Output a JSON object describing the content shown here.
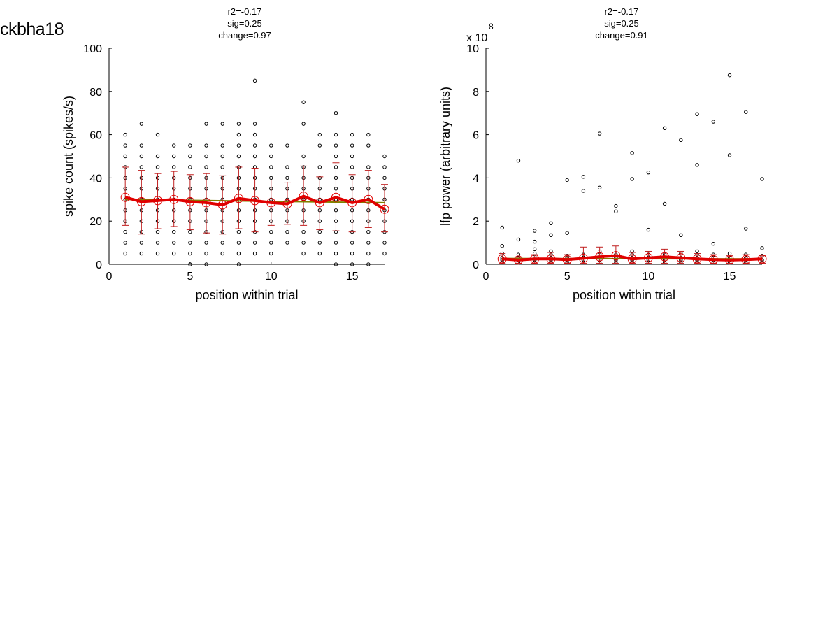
{
  "figure_title": "ckbha18",
  "colors": {
    "mean_line": "#e00000",
    "fit_line": "#808000",
    "errorbar": "#c02020",
    "points": "#000000",
    "axis": "#000000"
  },
  "chart_data": [
    {
      "type": "scatter",
      "stats": [
        "r2=-0.17",
        "sig=0.25",
        "change=0.97"
      ],
      "xlabel": "position within trial",
      "ylabel": "spike count (spikes/s)",
      "exponent_label": "",
      "xlim": [
        0,
        17
      ],
      "ylim": [
        0,
        100
      ],
      "xticks": [
        0,
        5,
        10,
        15
      ],
      "yticks": [
        0,
        20,
        40,
        60,
        80,
        100
      ],
      "grid": false,
      "points": [
        [
          1,
          5
        ],
        [
          1,
          10
        ],
        [
          1,
          15
        ],
        [
          1,
          20
        ],
        [
          1,
          25
        ],
        [
          1,
          30
        ],
        [
          1,
          35
        ],
        [
          1,
          40
        ],
        [
          1,
          45
        ],
        [
          1,
          50
        ],
        [
          1,
          55
        ],
        [
          1,
          60
        ],
        [
          2,
          5
        ],
        [
          2,
          10
        ],
        [
          2,
          15
        ],
        [
          2,
          20
        ],
        [
          2,
          25
        ],
        [
          2,
          30
        ],
        [
          2,
          35
        ],
        [
          2,
          40
        ],
        [
          2,
          45
        ],
        [
          2,
          50
        ],
        [
          2,
          55
        ],
        [
          2,
          65
        ],
        [
          3,
          5
        ],
        [
          3,
          10
        ],
        [
          3,
          15
        ],
        [
          3,
          20
        ],
        [
          3,
          25
        ],
        [
          3,
          30
        ],
        [
          3,
          35
        ],
        [
          3,
          40
        ],
        [
          3,
          45
        ],
        [
          3,
          50
        ],
        [
          3,
          60
        ],
        [
          4,
          5
        ],
        [
          4,
          10
        ],
        [
          4,
          15
        ],
        [
          4,
          20
        ],
        [
          4,
          25
        ],
        [
          4,
          30
        ],
        [
          4,
          35
        ],
        [
          4,
          40
        ],
        [
          4,
          45
        ],
        [
          4,
          50
        ],
        [
          4,
          55
        ],
        [
          5,
          0
        ],
        [
          5,
          5
        ],
        [
          5,
          10
        ],
        [
          5,
          15
        ],
        [
          5,
          20
        ],
        [
          5,
          25
        ],
        [
          5,
          30
        ],
        [
          5,
          35
        ],
        [
          5,
          40
        ],
        [
          5,
          45
        ],
        [
          5,
          50
        ],
        [
          5,
          55
        ],
        [
          6,
          0
        ],
        [
          6,
          5
        ],
        [
          6,
          10
        ],
        [
          6,
          15
        ],
        [
          6,
          20
        ],
        [
          6,
          25
        ],
        [
          6,
          30
        ],
        [
          6,
          35
        ],
        [
          6,
          40
        ],
        [
          6,
          45
        ],
        [
          6,
          50
        ],
        [
          6,
          55
        ],
        [
          6,
          65
        ],
        [
          7,
          5
        ],
        [
          7,
          10
        ],
        [
          7,
          15
        ],
        [
          7,
          20
        ],
        [
          7,
          25
        ],
        [
          7,
          30
        ],
        [
          7,
          35
        ],
        [
          7,
          40
        ],
        [
          7,
          45
        ],
        [
          7,
          50
        ],
        [
          7,
          55
        ],
        [
          7,
          65
        ],
        [
          8,
          0
        ],
        [
          8,
          5
        ],
        [
          8,
          10
        ],
        [
          8,
          15
        ],
        [
          8,
          20
        ],
        [
          8,
          25
        ],
        [
          8,
          30
        ],
        [
          8,
          35
        ],
        [
          8,
          40
        ],
        [
          8,
          45
        ],
        [
          8,
          50
        ],
        [
          8,
          55
        ],
        [
          8,
          60
        ],
        [
          8,
          65
        ],
        [
          9,
          5
        ],
        [
          9,
          10
        ],
        [
          9,
          15
        ],
        [
          9,
          20
        ],
        [
          9,
          25
        ],
        [
          9,
          30
        ],
        [
          9,
          35
        ],
        [
          9,
          40
        ],
        [
          9,
          45
        ],
        [
          9,
          50
        ],
        [
          9,
          55
        ],
        [
          9,
          60
        ],
        [
          9,
          65
        ],
        [
          9,
          85
        ],
        [
          10,
          5
        ],
        [
          10,
          10
        ],
        [
          10,
          15
        ],
        [
          10,
          20
        ],
        [
          10,
          25
        ],
        [
          10,
          30
        ],
        [
          10,
          35
        ],
        [
          10,
          40
        ],
        [
          10,
          45
        ],
        [
          10,
          50
        ],
        [
          10,
          55
        ],
        [
          11,
          10
        ],
        [
          11,
          15
        ],
        [
          11,
          20
        ],
        [
          11,
          25
        ],
        [
          11,
          30
        ],
        [
          11,
          35
        ],
        [
          11,
          40
        ],
        [
          11,
          45
        ],
        [
          11,
          55
        ],
        [
          12,
          5
        ],
        [
          12,
          10
        ],
        [
          12,
          15
        ],
        [
          12,
          20
        ],
        [
          12,
          25
        ],
        [
          12,
          30
        ],
        [
          12,
          35
        ],
        [
          12,
          40
        ],
        [
          12,
          45
        ],
        [
          12,
          50
        ],
        [
          12,
          65
        ],
        [
          12,
          75
        ],
        [
          13,
          5
        ],
        [
          13,
          10
        ],
        [
          13,
          15
        ],
        [
          13,
          20
        ],
        [
          13,
          25
        ],
        [
          13,
          30
        ],
        [
          13,
          35
        ],
        [
          13,
          40
        ],
        [
          13,
          45
        ],
        [
          13,
          55
        ],
        [
          13,
          60
        ],
        [
          14,
          0
        ],
        [
          14,
          5
        ],
        [
          14,
          10
        ],
        [
          14,
          15
        ],
        [
          14,
          20
        ],
        [
          14,
          25
        ],
        [
          14,
          30
        ],
        [
          14,
          35
        ],
        [
          14,
          40
        ],
        [
          14,
          45
        ],
        [
          14,
          50
        ],
        [
          14,
          55
        ],
        [
          14,
          60
        ],
        [
          14,
          70
        ],
        [
          15,
          0
        ],
        [
          15,
          5
        ],
        [
          15,
          10
        ],
        [
          15,
          15
        ],
        [
          15,
          20
        ],
        [
          15,
          25
        ],
        [
          15,
          30
        ],
        [
          15,
          35
        ],
        [
          15,
          40
        ],
        [
          15,
          45
        ],
        [
          15,
          50
        ],
        [
          15,
          55
        ],
        [
          15,
          60
        ],
        [
          16,
          0
        ],
        [
          16,
          5
        ],
        [
          16,
          10
        ],
        [
          16,
          15
        ],
        [
          16,
          20
        ],
        [
          16,
          25
        ],
        [
          16,
          30
        ],
        [
          16,
          35
        ],
        [
          16,
          40
        ],
        [
          16,
          45
        ],
        [
          16,
          55
        ],
        [
          16,
          60
        ],
        [
          17,
          5
        ],
        [
          17,
          10
        ],
        [
          17,
          15
        ],
        [
          17,
          20
        ],
        [
          17,
          25
        ],
        [
          17,
          30
        ],
        [
          17,
          35
        ],
        [
          17,
          40
        ],
        [
          17,
          45
        ],
        [
          17,
          50
        ]
      ],
      "mean": [
        31,
        29,
        29.5,
        30,
        29,
        28.5,
        27.5,
        30.5,
        29.5,
        28.5,
        28,
        31.5,
        28.5,
        31,
        28.5,
        30,
        25.5
      ],
      "err_low": [
        18,
        14,
        16.5,
        17.5,
        16,
        14.5,
        14,
        16.5,
        15,
        18,
        18.5,
        18,
        16,
        15.5,
        15,
        17,
        15
      ],
      "err_high": [
        45,
        43.5,
        42,
        43,
        41.5,
        42,
        41,
        45,
        44.5,
        39,
        38,
        45.5,
        40.5,
        47,
        41.5,
        43.5,
        37
      ],
      "fit": [
        30,
        28.5
      ]
    },
    {
      "type": "scatter",
      "stats": [
        "r2=-0.17",
        "sig=0.25",
        "change=0.91"
      ],
      "xlabel": "position within trial",
      "ylabel": "lfp power (arbitrary units)",
      "exponent_label": "x 10",
      "exponent_power": "8",
      "xlim": [
        0,
        17
      ],
      "ylim": [
        0,
        10
      ],
      "xticks": [
        0,
        5,
        10,
        15
      ],
      "yticks": [
        0,
        2,
        4,
        6,
        8,
        10
      ],
      "grid": false,
      "points": [
        [
          1,
          0.1
        ],
        [
          1,
          0.2
        ],
        [
          1,
          0.3
        ],
        [
          1,
          0.5
        ],
        [
          1,
          0.85
        ],
        [
          1,
          1.7
        ],
        [
          2,
          0.1
        ],
        [
          2,
          0.2
        ],
        [
          2,
          0.3
        ],
        [
          2,
          0.45
        ],
        [
          2,
          1.15
        ],
        [
          2,
          4.8
        ],
        [
          3,
          0.1
        ],
        [
          3,
          0.2
        ],
        [
          3,
          0.35
        ],
        [
          3,
          0.5
        ],
        [
          3,
          0.7
        ],
        [
          3,
          1.05
        ],
        [
          3,
          1.55
        ],
        [
          4,
          0.1
        ],
        [
          4,
          0.2
        ],
        [
          4,
          0.3
        ],
        [
          4,
          0.45
        ],
        [
          4,
          0.6
        ],
        [
          4,
          1.35
        ],
        [
          4,
          1.9
        ],
        [
          5,
          0.1
        ],
        [
          5,
          0.2
        ],
        [
          5,
          0.3
        ],
        [
          5,
          0.4
        ],
        [
          5,
          1.45
        ],
        [
          5,
          3.9
        ],
        [
          6,
          0.1
        ],
        [
          6,
          0.2
        ],
        [
          6,
          0.3
        ],
        [
          6,
          0.45
        ],
        [
          6,
          3.4
        ],
        [
          6,
          4.05
        ],
        [
          7,
          0.1
        ],
        [
          7,
          0.2
        ],
        [
          7,
          0.3
        ],
        [
          7,
          0.45
        ],
        [
          7,
          0.6
        ],
        [
          7,
          3.55
        ],
        [
          7,
          6.05
        ],
        [
          8,
          0.1
        ],
        [
          8,
          0.2
        ],
        [
          8,
          0.3
        ],
        [
          8,
          0.45
        ],
        [
          8,
          2.45
        ],
        [
          8,
          2.7
        ],
        [
          9,
          0.1
        ],
        [
          9,
          0.2
        ],
        [
          9,
          0.3
        ],
        [
          9,
          0.45
        ],
        [
          9,
          0.6
        ],
        [
          9,
          3.95
        ],
        [
          9,
          5.15
        ],
        [
          10,
          0.1
        ],
        [
          10,
          0.2
        ],
        [
          10,
          0.3
        ],
        [
          10,
          0.45
        ],
        [
          10,
          1.6
        ],
        [
          10,
          4.25
        ],
        [
          11,
          0.1
        ],
        [
          11,
          0.2
        ],
        [
          11,
          0.3
        ],
        [
          11,
          0.45
        ],
        [
          11,
          2.8
        ],
        [
          11,
          6.3
        ],
        [
          12,
          0.1
        ],
        [
          12,
          0.2
        ],
        [
          12,
          0.3
        ],
        [
          12,
          0.5
        ],
        [
          12,
          1.35
        ],
        [
          12,
          5.75
        ],
        [
          13,
          0.1
        ],
        [
          13,
          0.2
        ],
        [
          13,
          0.3
        ],
        [
          13,
          0.45
        ],
        [
          13,
          0.6
        ],
        [
          13,
          4.6
        ],
        [
          13,
          6.95
        ],
        [
          14,
          0.1
        ],
        [
          14,
          0.2
        ],
        [
          14,
          0.3
        ],
        [
          14,
          0.45
        ],
        [
          14,
          0.95
        ],
        [
          14,
          6.6
        ],
        [
          15,
          0.1
        ],
        [
          15,
          0.2
        ],
        [
          15,
          0.3
        ],
        [
          15,
          0.5
        ],
        [
          15,
          5.05
        ],
        [
          15,
          8.75
        ],
        [
          16,
          0.1
        ],
        [
          16,
          0.2
        ],
        [
          16,
          0.3
        ],
        [
          16,
          0.45
        ],
        [
          16,
          1.65
        ],
        [
          16,
          7.05
        ],
        [
          17,
          0.1
        ],
        [
          17,
          0.2
        ],
        [
          17,
          0.4
        ],
        [
          17,
          0.75
        ],
        [
          17,
          3.95
        ]
      ],
      "mean": [
        0.25,
        0.2,
        0.25,
        0.25,
        0.22,
        0.28,
        0.35,
        0.4,
        0.25,
        0.3,
        0.35,
        0.3,
        0.25,
        0.22,
        0.2,
        0.22,
        0.25
      ],
      "err_low": [
        0.05,
        0.05,
        0.05,
        0.05,
        0.05,
        0.05,
        0.05,
        0.05,
        0.05,
        0.05,
        0.05,
        0.05,
        0.05,
        0.05,
        0.05,
        0.05,
        0.05
      ],
      "err_high": [
        0.5,
        0.3,
        0.45,
        0.55,
        0.45,
        0.8,
        0.8,
        0.85,
        0.55,
        0.6,
        0.7,
        0.6,
        0.5,
        0.45,
        0.4,
        0.45,
        0.4
      ],
      "fit": [
        0.27,
        0.25
      ]
    }
  ]
}
